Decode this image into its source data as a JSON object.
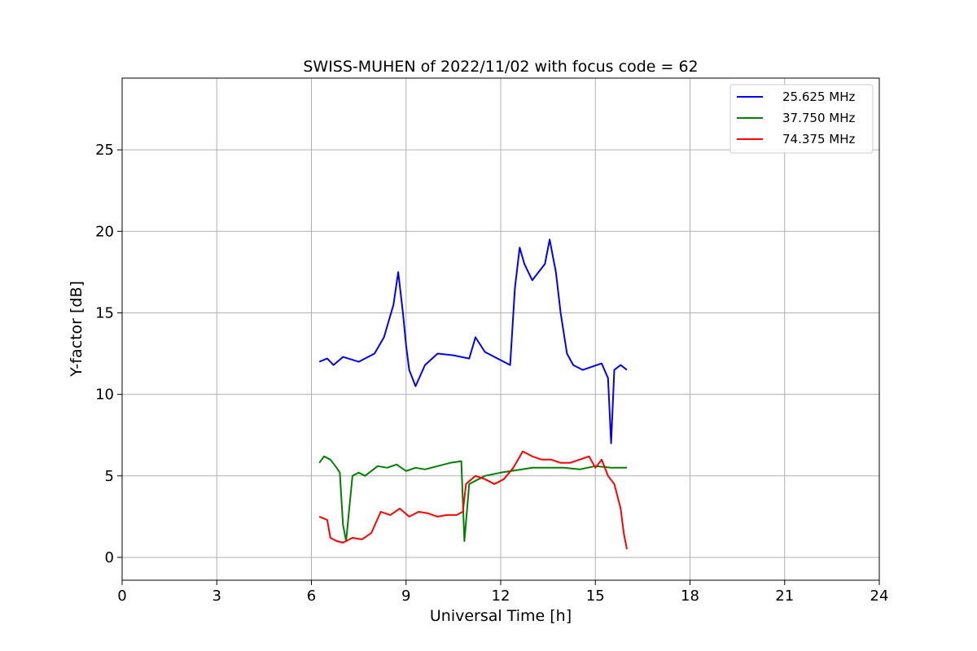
{
  "chart_data": {
    "type": "line",
    "title": "SWISS-MUHEN of 2022/11/02 with focus code = 62",
    "xlabel": "Universal Time [h]",
    "ylabel": "Y-factor [dB]",
    "xlim": [
      0,
      24
    ],
    "ylim": [
      -1.4,
      29.4
    ],
    "xticks": [
      0,
      3,
      6,
      9,
      12,
      15,
      18,
      21,
      24
    ],
    "yticks": [
      0,
      5,
      10,
      15,
      20,
      25
    ],
    "grid": true,
    "legend_position": "upper right",
    "series": [
      {
        "name": "25.625 MHz",
        "color": "#0000ff",
        "x": [
          6.25,
          6.5,
          6.7,
          7.0,
          7.5,
          8.0,
          8.3,
          8.6,
          8.75,
          8.9,
          9.0,
          9.1,
          9.3,
          9.6,
          10.0,
          10.5,
          11.0,
          11.2,
          11.5,
          11.8,
          12.1,
          12.3,
          12.45,
          12.6,
          12.75,
          13.0,
          13.2,
          13.4,
          13.55,
          13.75,
          13.9,
          14.1,
          14.3,
          14.6,
          14.9,
          15.2,
          15.4,
          15.5,
          15.6,
          15.8,
          16.0
        ],
        "values": [
          12.0,
          12.2,
          11.8,
          12.3,
          12.0,
          12.5,
          13.5,
          15.5,
          17.5,
          15.0,
          13.0,
          11.5,
          10.5,
          11.8,
          12.5,
          12.4,
          12.2,
          13.5,
          12.6,
          12.3,
          12.0,
          11.8,
          16.5,
          19.0,
          18.0,
          17.0,
          17.5,
          18.0,
          19.5,
          17.5,
          15.0,
          12.5,
          11.8,
          11.5,
          11.7,
          11.9,
          11.0,
          7.0,
          11.5,
          11.8,
          11.5
        ]
      },
      {
        "name": "37.750 MHz",
        "color": "#008000",
        "x": [
          6.25,
          6.4,
          6.6,
          6.8,
          6.9,
          7.0,
          7.1,
          7.3,
          7.5,
          7.7,
          7.9,
          8.1,
          8.4,
          8.7,
          9.0,
          9.3,
          9.6,
          10.0,
          10.4,
          10.75,
          10.85,
          11.0,
          11.5,
          12.0,
          13.0,
          14.0,
          14.5,
          15.0,
          15.5,
          16.0
        ],
        "values": [
          5.8,
          6.2,
          6.0,
          5.5,
          5.2,
          2.0,
          1.0,
          5.0,
          5.2,
          5.0,
          5.3,
          5.6,
          5.5,
          5.7,
          5.3,
          5.5,
          5.4,
          5.6,
          5.8,
          5.9,
          1.0,
          4.5,
          5.0,
          5.2,
          5.5,
          5.5,
          5.4,
          5.6,
          5.5,
          5.5
        ]
      },
      {
        "name": "74.375 MHz",
        "color": "#ff0000",
        "x": [
          6.25,
          6.5,
          6.6,
          6.8,
          7.0,
          7.3,
          7.6,
          7.9,
          8.2,
          8.5,
          8.8,
          9.1,
          9.4,
          9.7,
          10.0,
          10.3,
          10.6,
          10.8,
          10.9,
          11.2,
          11.5,
          11.8,
          12.1,
          12.4,
          12.7,
          13.0,
          13.3,
          13.6,
          13.9,
          14.2,
          14.5,
          14.8,
          15.0,
          15.2,
          15.4,
          15.6,
          15.8,
          15.9,
          16.0
        ],
        "values": [
          2.5,
          2.3,
          1.2,
          1.0,
          0.9,
          1.2,
          1.1,
          1.5,
          2.8,
          2.6,
          3.0,
          2.5,
          2.8,
          2.7,
          2.5,
          2.6,
          2.6,
          2.8,
          4.5,
          5.0,
          4.8,
          4.5,
          4.8,
          5.5,
          6.5,
          6.2,
          6.0,
          6.0,
          5.8,
          5.8,
          6.0,
          6.2,
          5.5,
          6.0,
          5.0,
          4.5,
          3.0,
          1.5,
          0.5
        ]
      }
    ]
  }
}
